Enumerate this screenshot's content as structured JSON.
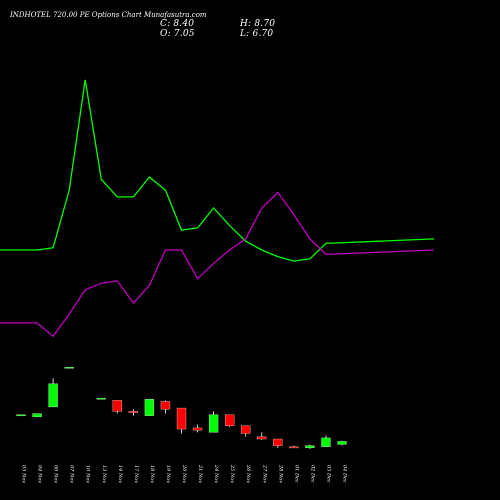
{
  "header": {
    "title": "INDHOTEL 720.00 PE Options Chart Munafasutra.com",
    "close": "C: 8.40",
    "high": "H: 8.70",
    "open": "O: 7.05",
    "low": "L: 6.70"
  },
  "colors": {
    "background": "#000000",
    "bull": "#00ff00",
    "bear": "#ff0000",
    "line_green": "#00ff00",
    "line_magenta": "#c000c0",
    "text": "#ffffff"
  },
  "chart_data": {
    "type": "candlestick",
    "categories": [
      "03 Nov",
      "04 Nov",
      "06 Nov",
      "07 Nov",
      "10 Nov",
      "13 Nov",
      "14 Nov",
      "17 Nov",
      "18 Nov",
      "19 Nov",
      "20 Nov",
      "21 Nov",
      "24 Nov",
      "25 Nov",
      "26 Nov",
      "27 Nov",
      "28 Nov",
      "01 Dec",
      "02 Dec",
      "03 Dec",
      "04 Dec"
    ],
    "candles": [
      {
        "open": 20.5,
        "close": 20.5,
        "high": 20.5,
        "low": 20.5
      },
      {
        "open": 19.5,
        "close": 21.0,
        "high": 21.0,
        "low": 19.5
      },
      {
        "open": 24.0,
        "close": 34.5,
        "high": 37.0,
        "low": 24.0
      },
      {
        "open": 42.0,
        "close": 42.0,
        "high": 42.0,
        "low": 42.0
      },
      {
        "open": 28.0,
        "close": 28.0,
        "high": 28.0,
        "low": 28.0
      },
      {
        "open": 27.0,
        "close": 22.0,
        "high": 27.0,
        "low": 21.0
      },
      {
        "open": 22.0,
        "close": 21.5,
        "high": 23.0,
        "low": 20.0
      },
      {
        "open": 20.0,
        "close": 27.5,
        "high": 27.5,
        "low": 20.0
      },
      {
        "open": 26.5,
        "close": 23.0,
        "high": 27.0,
        "low": 21.0
      },
      {
        "open": 23.5,
        "close": 14.0,
        "high": 23.5,
        "low": 12.0
      },
      {
        "open": 14.5,
        "close": 13.5,
        "high": 16.0,
        "low": 12.5
      },
      {
        "open": 12.5,
        "close": 20.5,
        "high": 22.0,
        "low": 12.5
      },
      {
        "open": 20.5,
        "close": 15.5,
        "high": 20.5,
        "low": 15.0
      },
      {
        "open": 15.5,
        "close": 12.0,
        "high": 15.5,
        "low": 10.5
      },
      {
        "open": 10.5,
        "close": 9.5,
        "high": 12.5,
        "low": 9.0
      },
      {
        "open": 9.5,
        "close": 6.5,
        "high": 9.5,
        "low": 5.5
      },
      {
        "open": 6.0,
        "close": 5.5,
        "high": 6.5,
        "low": 5.5
      },
      {
        "open": 5.5,
        "close": 6.5,
        "high": 7.0,
        "low": 5.0
      },
      {
        "open": 6.0,
        "close": 10.0,
        "high": 11.0,
        "low": 6.0
      },
      {
        "open": 7.05,
        "close": 8.4,
        "high": 8.7,
        "low": 6.7
      }
    ],
    "candle_slots": [
      0,
      1,
      2,
      3,
      5,
      6,
      7,
      8,
      9,
      10,
      11,
      12,
      13,
      14,
      15,
      16,
      17,
      18,
      19,
      20
    ],
    "series": [
      {
        "color": "#00ff00",
        "values": [
          95,
          95,
          96,
          122,
          172,
          127,
          119,
          119,
          128,
          122,
          104,
          105,
          114,
          106,
          99,
          95,
          92,
          90,
          91,
          98,
          100
        ]
      },
      {
        "color": "#c000c0",
        "values": [
          62,
          62,
          56,
          66,
          77,
          80,
          81,
          71,
          79,
          95,
          95,
          82,
          89,
          95,
          100,
          114,
          121,
          111,
          100,
          93,
          95
        ]
      }
    ],
    "ylim": [
      0,
      190
    ],
    "grid": false
  }
}
